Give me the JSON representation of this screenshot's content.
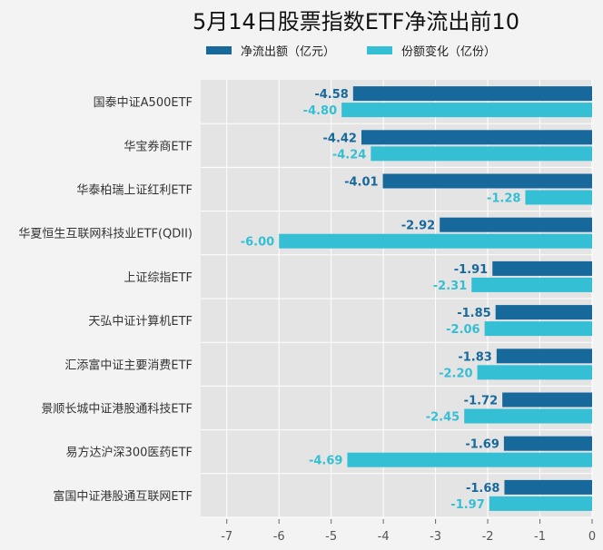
{
  "chart_data": {
    "type": "bar",
    "orientation": "horizontal",
    "title": "5月14日股票指数ETF净流出前10",
    "xlabel": "",
    "ylabel": "",
    "xlim": [
      -7.5,
      0
    ],
    "xticks": [
      -7,
      -6,
      -5,
      -4,
      -3,
      -2,
      -1,
      0
    ],
    "grid": true,
    "legend_position": "top",
    "categories": [
      "国泰中证A500ETF",
      "华宝券商ETF",
      "华泰柏瑞上证红利ETF",
      "华夏恒生互联网科技业ETF(QDII)",
      "上证综指ETF",
      "天弘中证计算机ETF",
      "汇添富中证主要消费ETF",
      "景顺长城中证港股通科技ETF",
      "易方达沪深300医药ETF",
      "富国中证港股通互联网ETF"
    ],
    "series": [
      {
        "name": "净流出额（亿元）",
        "color": "#17699c",
        "values": [
          -4.58,
          -4.42,
          -4.01,
          -2.92,
          -1.91,
          -1.85,
          -1.83,
          -1.72,
          -1.69,
          -1.68
        ]
      },
      {
        "name": "份额变化（亿份）",
        "color": "#35bfd4",
        "values": [
          -4.8,
          -4.24,
          -1.28,
          -6.0,
          -2.31,
          -2.06,
          -2.2,
          -2.45,
          -4.69,
          -1.97
        ]
      }
    ]
  }
}
